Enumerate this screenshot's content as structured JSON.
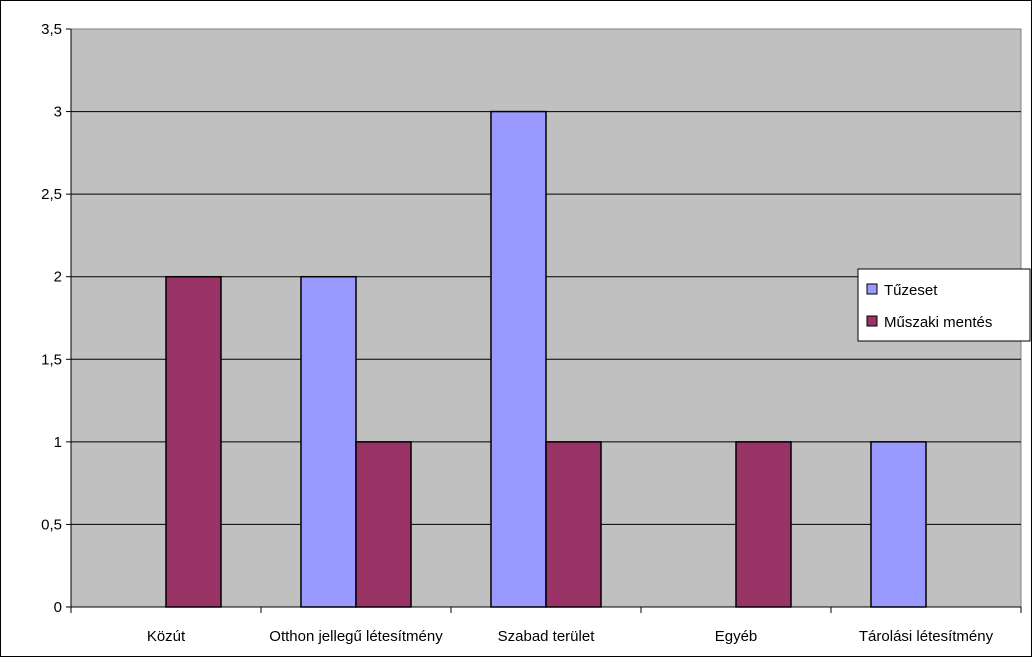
{
  "chart_data": {
    "type": "bar",
    "title": "",
    "xlabel": "",
    "ylabel": "",
    "categories": [
      "Közút",
      "Otthon jellegű létesítmény",
      "Szabad terület",
      "Egyéb",
      "Tárolási létesítmény"
    ],
    "series": [
      {
        "name": "Tűzeset",
        "values": [
          0,
          2,
          3,
          0,
          1
        ],
        "color": "#9999ff"
      },
      {
        "name": "Műszaki mentés",
        "values": [
          2,
          1,
          1,
          1,
          0
        ],
        "color": "#993366"
      }
    ],
    "ylim": [
      0,
      3.5
    ],
    "yticks": [
      "0",
      "0,5",
      "1",
      "1,5",
      "2",
      "2,5",
      "3",
      "3,5"
    ],
    "plot_background": "#c0c0c0",
    "grid": true,
    "legend_position": "right"
  }
}
